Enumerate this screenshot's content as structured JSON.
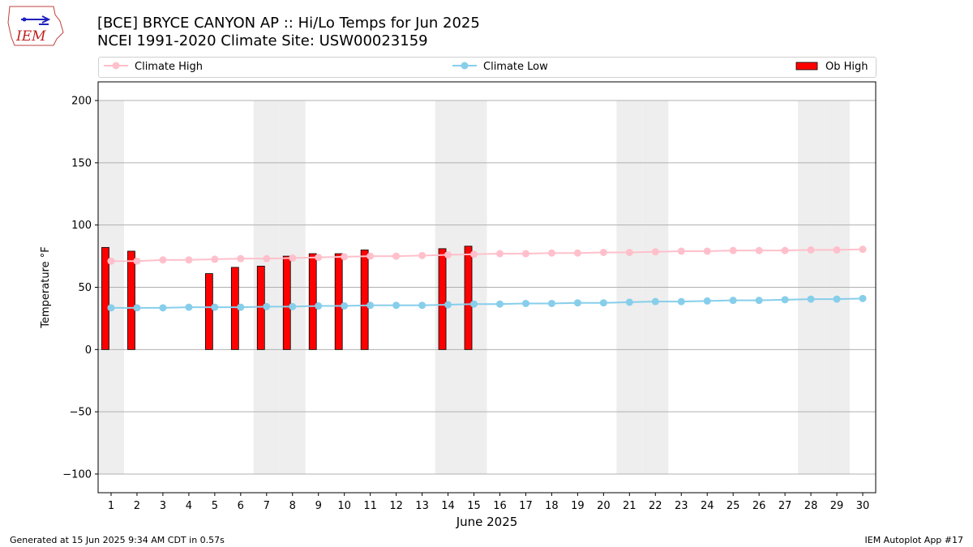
{
  "header": {
    "title_line1": "[BCE] BRYCE CANYON AP :: Hi/Lo Temps for Jun 2025",
    "title_line2": "NCEI 1991-2020 Climate Site: USW00023159"
  },
  "logo": {
    "text": "IEM"
  },
  "legend": {
    "climate_high": "Climate High",
    "climate_low": "Climate Low",
    "ob_high": "Ob High"
  },
  "footer": {
    "left": "Generated at 15 Jun 2025 9:34 AM CDT in 0.57s",
    "right": "IEM Autoplot App #17"
  },
  "colors": {
    "climate_high": "#ffc0cb",
    "climate_low": "#87ceeb",
    "ob_high": "#ff0000",
    "weekend_shade": "#eeeeee",
    "grid": "#b0b0b0"
  },
  "chart_data": {
    "type": "bar",
    "xlabel": "June 2025",
    "ylabel": "Temperature °F",
    "ylim": [
      -115,
      215
    ],
    "yticks": [
      -100,
      -50,
      0,
      50,
      100,
      150,
      200
    ],
    "x": [
      1,
      2,
      3,
      4,
      5,
      6,
      7,
      8,
      9,
      10,
      11,
      12,
      13,
      14,
      15,
      16,
      17,
      18,
      19,
      20,
      21,
      22,
      23,
      24,
      25,
      26,
      27,
      28,
      29,
      30
    ],
    "grid": "horizontal",
    "weekend_days": [
      1,
      7,
      8,
      14,
      15,
      21,
      22,
      28,
      29
    ],
    "series": [
      {
        "name": "Climate High",
        "kind": "line",
        "values": [
          71,
          71,
          72,
          72,
          72.5,
          73,
          73,
          73.5,
          74,
          74.5,
          75,
          75,
          75.5,
          76,
          76.5,
          77,
          77,
          77.5,
          77.5,
          78,
          78,
          78.5,
          79,
          79,
          79.5,
          79.5,
          79.5,
          80,
          80,
          80.5
        ]
      },
      {
        "name": "Climate Low",
        "kind": "line",
        "values": [
          33.5,
          33.5,
          33.5,
          34,
          34,
          34,
          34.5,
          34.5,
          35,
          35,
          35.5,
          35.5,
          35.5,
          36,
          36.5,
          36.5,
          37,
          37,
          37.5,
          37.5,
          38,
          38.5,
          38.5,
          39,
          39.5,
          39.5,
          40,
          40.5,
          40.5,
          41
        ]
      },
      {
        "name": "Ob High",
        "kind": "bar",
        "x": [
          1,
          2,
          5,
          6,
          7,
          8,
          9,
          10,
          11,
          14,
          15
        ],
        "values": [
          82,
          79,
          61,
          66,
          67,
          75,
          77,
          77,
          80,
          81,
          83
        ]
      }
    ]
  }
}
